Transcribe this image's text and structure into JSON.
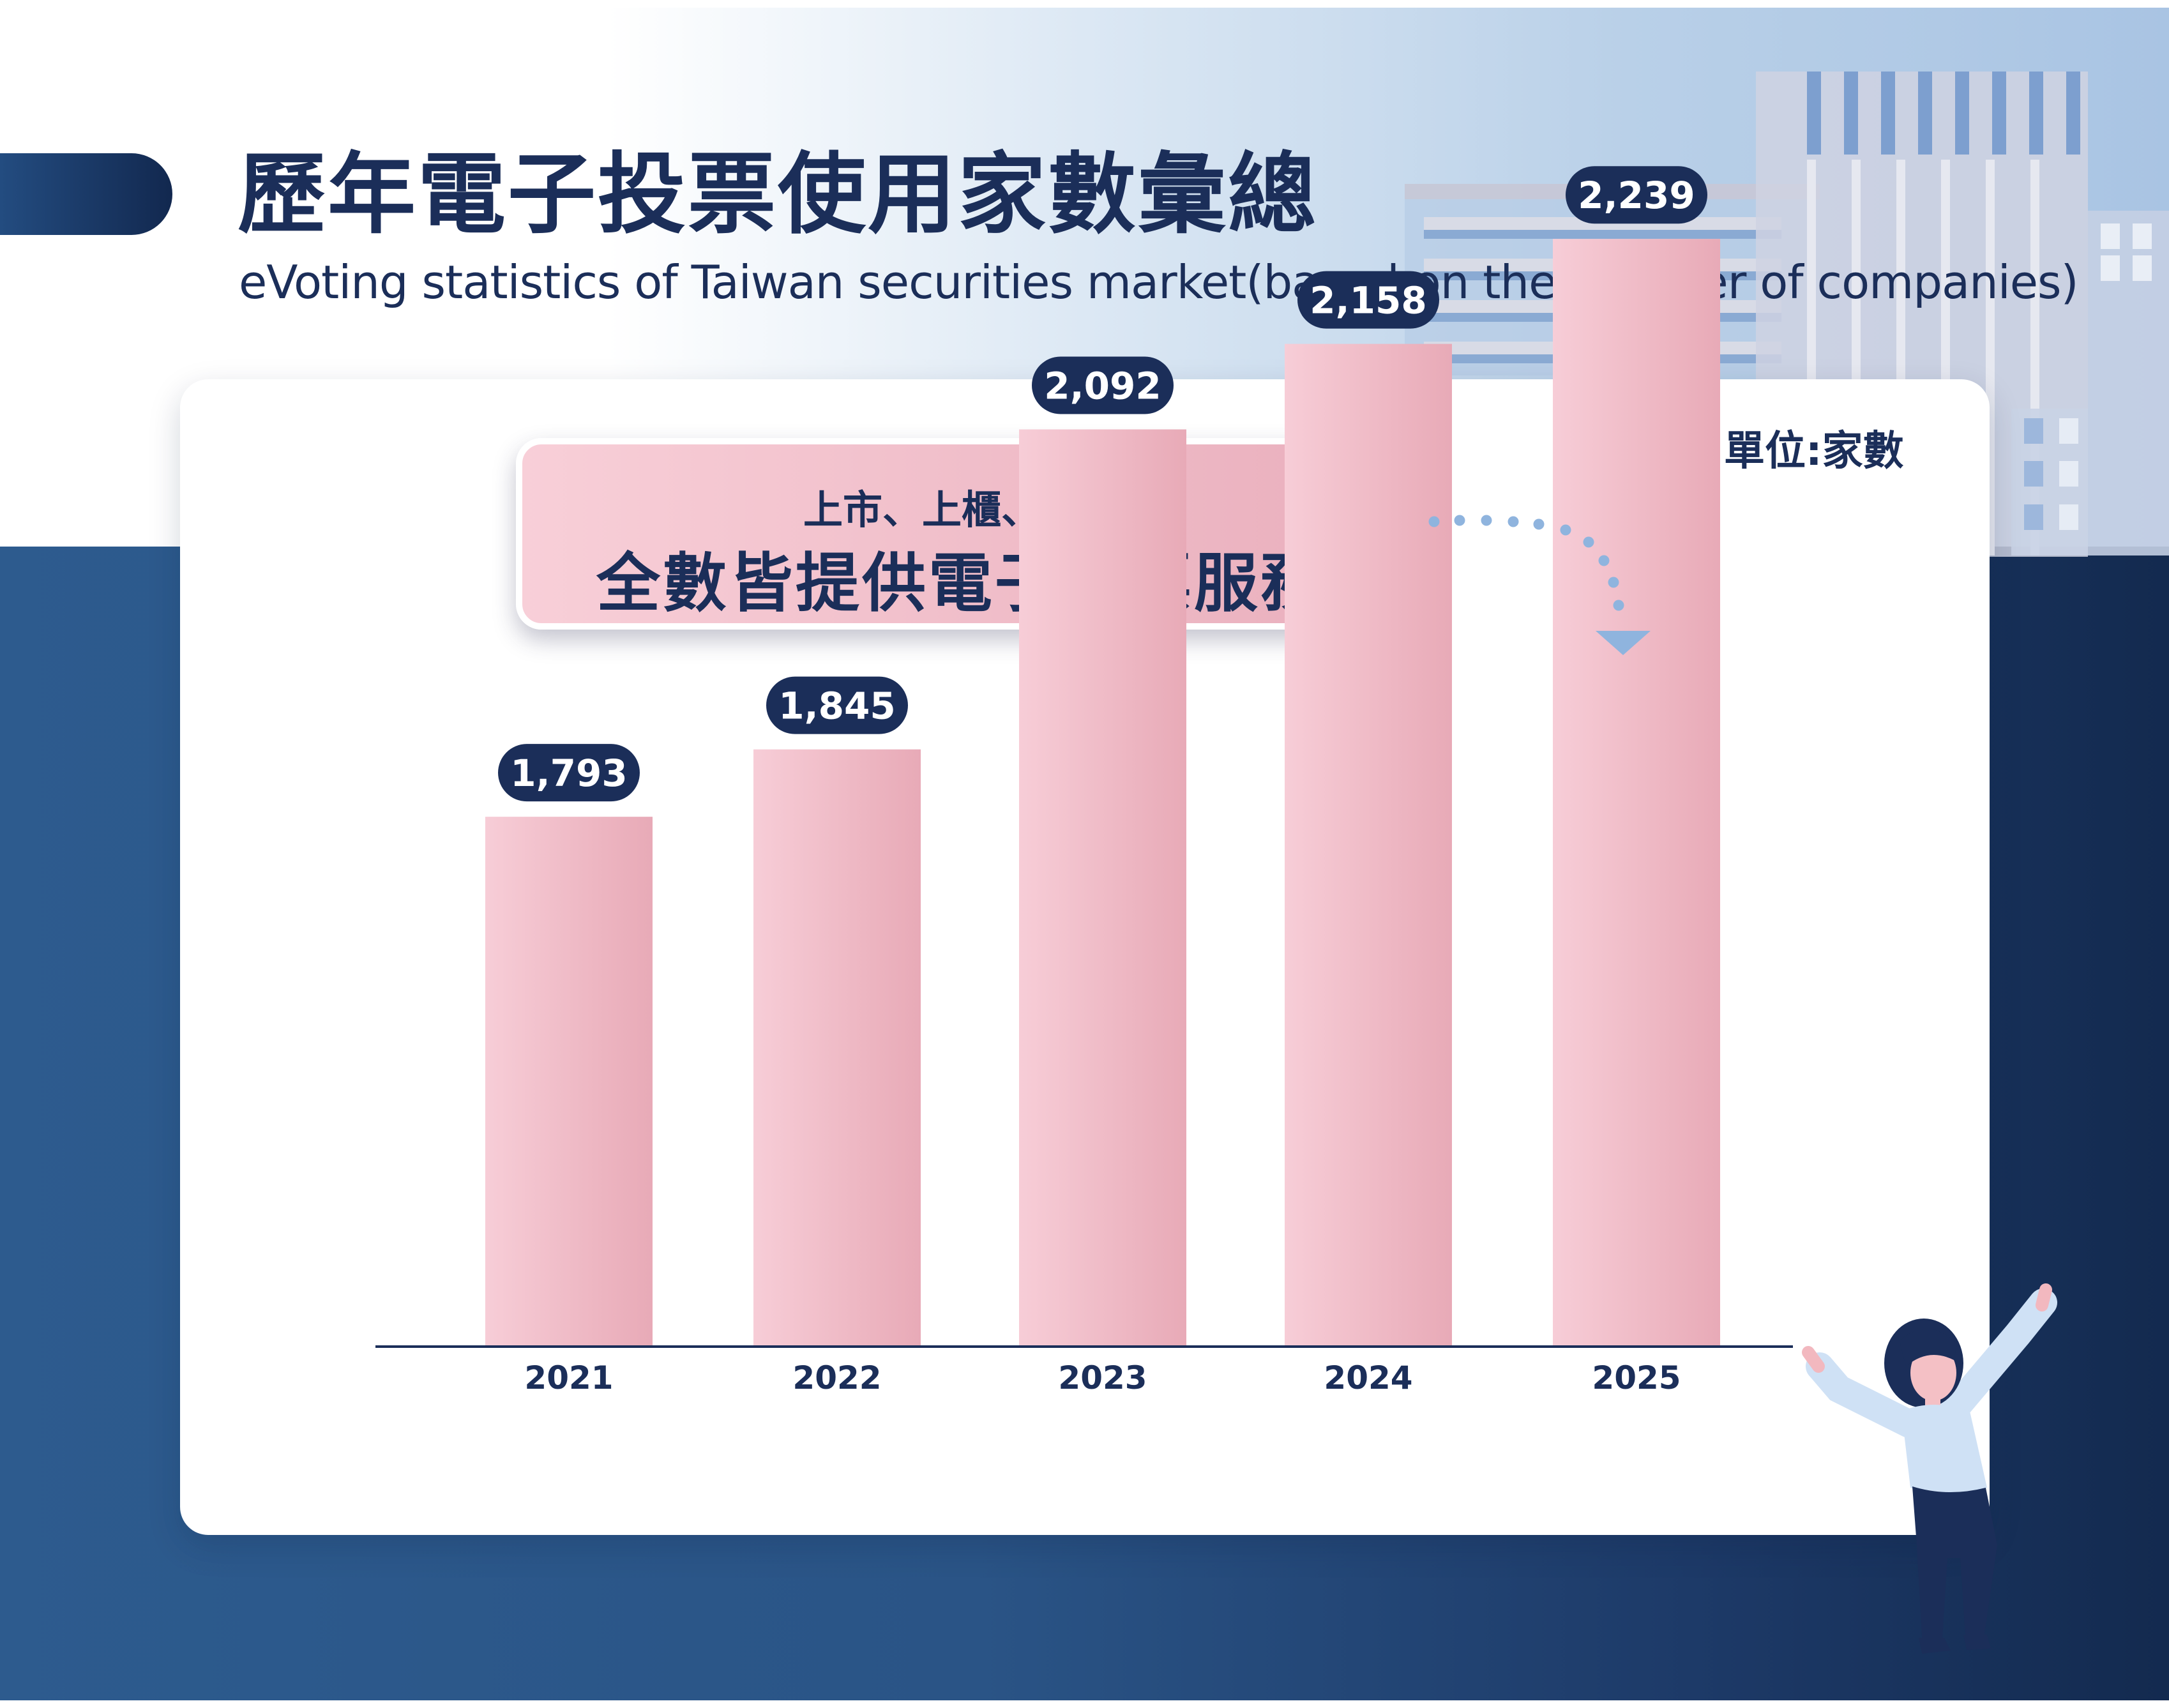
{
  "header": {
    "title": "歷年電子投票使用家數彙總",
    "subtitle": "eVoting statistics of Taiwan securities market(based on the number of companies)"
  },
  "unit_label": "單位:家數",
  "callout": {
    "line1": "上市、上櫃、興櫃",
    "line2": "全數皆提供電子投票服務"
  },
  "colors": {
    "navy": "#1b2e59",
    "bar_light": "#f7cdd7",
    "bar_dark": "#e8aab7",
    "arrow": "#8fb4de"
  },
  "chart_data": {
    "type": "bar",
    "categories": [
      "2021",
      "2022",
      "2023",
      "2024",
      "2025"
    ],
    "values": [
      1793,
      1845,
      2092,
      2158,
      2239
    ],
    "value_labels": [
      "1,793",
      "1,845",
      "2,092",
      "2,158",
      "2,239"
    ],
    "title": "歷年電子投票使用家數彙總",
    "ylabel": "",
    "xlabel": "",
    "grid": false
  }
}
